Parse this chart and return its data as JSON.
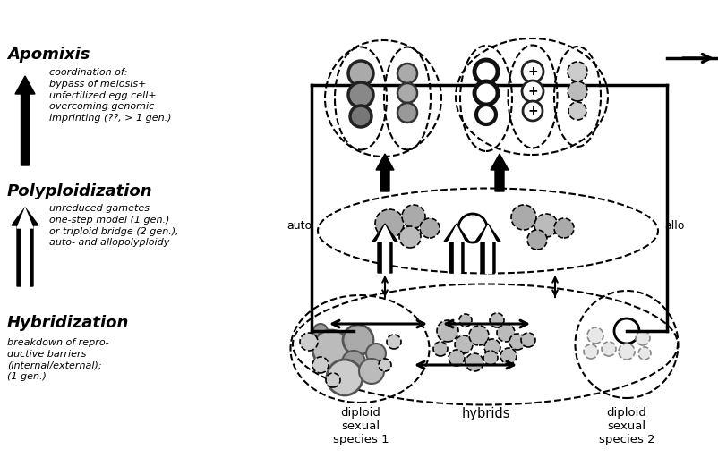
{
  "bg_color": "#ffffff",
  "left_labels": {
    "apomixis_title": "Apomixis",
    "apomixis_text": "coordination of:\nbypass of meiosis+\nunfertilized egg cell+\novercoming genomic\nimprinting (??, > 1 gen.)",
    "poly_title": "Polyploidization",
    "poly_text": "unreduced gametes\none-step model (1 gen.)\nor triploid bridge (2 gen.),\nauto- and allopolyploidy",
    "hybrid_title": "Hybridization",
    "hybrid_text": "breakdown of repro-\nductive barriers\n(internal/external);\n(1 gen.)"
  },
  "bottom_labels": {
    "species1": "diploid\nsexual\nspecies 1",
    "hybrids": "hybrids",
    "species2": "diploid\nsexual\nspecies 2"
  },
  "auto_label": "auto",
  "allo_label": "allo"
}
